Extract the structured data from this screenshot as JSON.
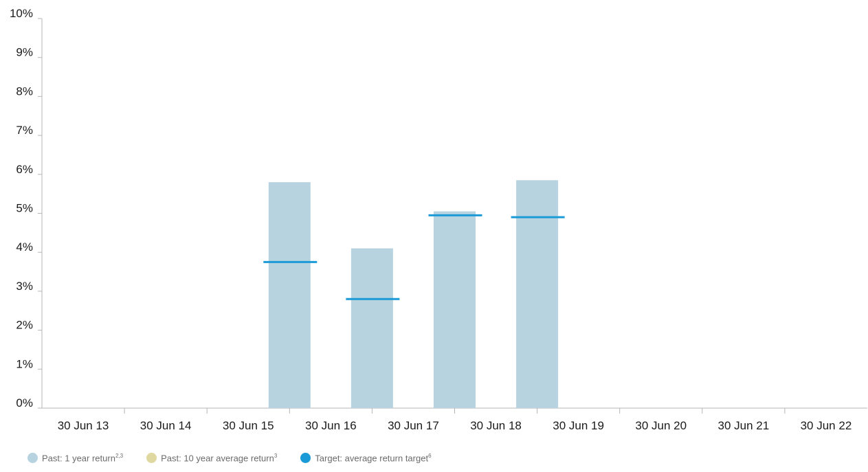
{
  "chart_data": {
    "type": "bar",
    "categories": [
      "30 Jun 13",
      "30 Jun 14",
      "30 Jun 15",
      "30 Jun 16",
      "30 Jun 17",
      "30 Jun 18",
      "30 Jun 19",
      "30 Jun 20",
      "30 Jun 21",
      "30 Jun 22"
    ],
    "ylim": [
      0,
      10
    ],
    "yticks": [
      "0%",
      "1%",
      "2%",
      "3%",
      "4%",
      "5%",
      "6%",
      "7%",
      "8%",
      "9%",
      "10%"
    ],
    "grid": false,
    "legend_position": "bottom-left",
    "series": [
      {
        "name": "Past: 1 year return",
        "name_superscript": "2,3",
        "marker": "bar",
        "color": "#b7d3e0",
        "values": [
          null,
          null,
          5.8,
          4.1,
          5.05,
          5.85,
          null,
          null,
          null,
          null
        ]
      },
      {
        "name": "Past: 10 year average return",
        "name_superscript": "3",
        "marker": "bar",
        "color": "#dfd8a0",
        "values": [
          null,
          null,
          null,
          null,
          null,
          null,
          null,
          null,
          null,
          null
        ]
      },
      {
        "name": "Target: average return target",
        "name_superscript": "6",
        "marker": "line",
        "color": "#1a9ad6",
        "values": [
          null,
          null,
          3.75,
          2.8,
          4.95,
          4.9,
          null,
          null,
          null,
          null
        ]
      }
    ]
  }
}
